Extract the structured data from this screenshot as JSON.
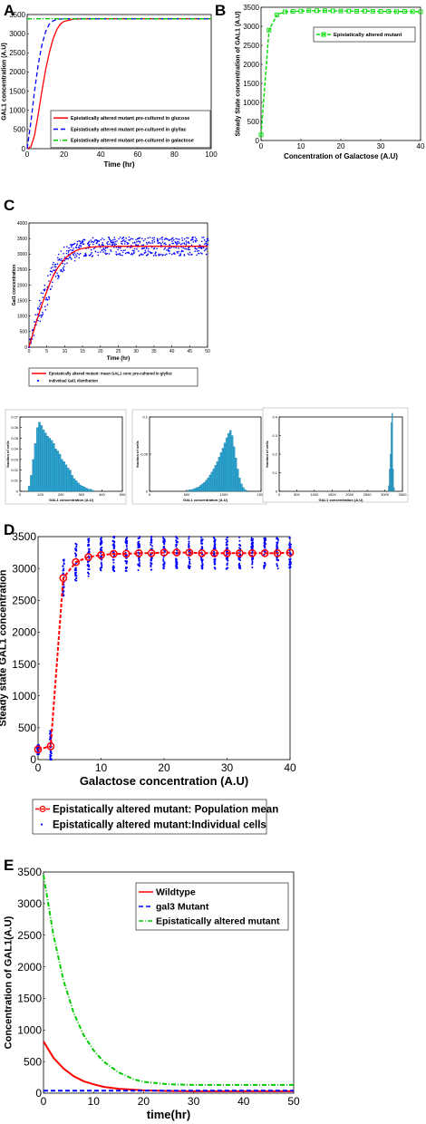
{
  "chart_data": [
    {
      "panel": "A",
      "type": "line",
      "xlabel": "Time (hr)",
      "ylabel": "GAL1 concentration (A.U)",
      "xlim": [
        0,
        100
      ],
      "ylim": [
        0,
        3500
      ],
      "xticks": [
        0,
        20,
        40,
        60,
        80,
        100
      ],
      "yticks": [
        0,
        500,
        1000,
        1500,
        2000,
        2500,
        3000,
        3500
      ],
      "legend_position": "lower-right",
      "series": [
        {
          "name": "Epistatically altered mutant pre-cultured in glucose",
          "color": "#ff0000",
          "style": "solid",
          "x": [
            0,
            2,
            4,
            6,
            8,
            10,
            12,
            14,
            16,
            18,
            20,
            25,
            30,
            40,
            100
          ],
          "y": [
            0,
            50,
            350,
            900,
            1500,
            2050,
            2500,
            2850,
            3100,
            3250,
            3320,
            3380,
            3390,
            3390,
            3390
          ]
        },
        {
          "name": "Epistatically altered mutant pre-cultured in gly/lac",
          "color": "#0000ff",
          "style": "dashed",
          "x": [
            0,
            2,
            4,
            6,
            8,
            10,
            12,
            14,
            16,
            20,
            25,
            100
          ],
          "y": [
            0,
            700,
            1500,
            2200,
            2700,
            3050,
            3250,
            3330,
            3370,
            3390,
            3390,
            3390
          ]
        },
        {
          "name": "Epistatically altered mutant pre-cultured in galactose",
          "color": "#00cc00",
          "style": "dashdot",
          "x": [
            0,
            100
          ],
          "y": [
            3390,
            3390
          ]
        }
      ]
    },
    {
      "panel": "B",
      "type": "line",
      "xlabel": "Concentration of Galactose (A.U)",
      "ylabel": "Steady State concentration of GAL1 (A.U)",
      "xlim": [
        0,
        40
      ],
      "ylim": [
        0,
        3500
      ],
      "xticks": [
        0,
        10,
        20,
        30,
        40
      ],
      "yticks": [
        0,
        500,
        1000,
        1500,
        2000,
        2500,
        3000,
        3500
      ],
      "legend_position": "top-right",
      "series": [
        {
          "name": "Epistatically altered mutant",
          "color": "#00dd00",
          "style": "dashed-square",
          "x": [
            0,
            2,
            4,
            6,
            8,
            10,
            12,
            14,
            16,
            18,
            20,
            22,
            24,
            26,
            28,
            30,
            32,
            34,
            36,
            38,
            40
          ],
          "y": [
            150,
            2900,
            3300,
            3380,
            3390,
            3400,
            3410,
            3410,
            3410,
            3405,
            3400,
            3400,
            3395,
            3400,
            3395,
            3390,
            3390,
            3385,
            3390,
            3385,
            3380
          ]
        }
      ]
    },
    {
      "panel": "C",
      "type": "scatter",
      "xlabel": "Time (hr)",
      "ylabel": "Gal1 concentration",
      "xlim": [
        0,
        50
      ],
      "ylim": [
        0,
        4000
      ],
      "xticks": [
        0,
        5,
        10,
        15,
        20,
        25,
        30,
        35,
        40,
        45,
        50
      ],
      "yticks": [
        0,
        500,
        1000,
        1500,
        2000,
        2500,
        3000,
        3500,
        4000
      ],
      "legend_position": "below",
      "series": [
        {
          "name": "Epistatically altered mutant: mean GAL1 conc pre-cultured in gly/lac",
          "color": "#ff0000",
          "style": "solid",
          "x": [
            0,
            1,
            2,
            3,
            4,
            5,
            6,
            7,
            8,
            9,
            10,
            11,
            12,
            13,
            14,
            15,
            17,
            20,
            25,
            30,
            35,
            40,
            45,
            50
          ],
          "y": [
            0,
            400,
            800,
            1150,
            1500,
            1800,
            2100,
            2350,
            2550,
            2700,
            2850,
            2950,
            3030,
            3100,
            3150,
            3180,
            3220,
            3240,
            3250,
            3250,
            3250,
            3250,
            3250,
            3250
          ]
        },
        {
          "name": "individual Gal1 distribution",
          "color": "#0000ff",
          "style": "dots",
          "spread": [
            0,
            200,
            300,
            400,
            450,
            450,
            450,
            450,
            400,
            400,
            380,
            350,
            330,
            320,
            300,
            300,
            300,
            300,
            300,
            300,
            300,
            300,
            300,
            300
          ]
        }
      ]
    },
    {
      "panel": "C-hist-1",
      "type": "bar",
      "xlabel": "GAL1 concentration (A.U)",
      "ylabel": "fraction of cells",
      "xlim": [
        0,
        500
      ],
      "ylim": [
        0,
        0.07
      ],
      "xticks": [
        0,
        100,
        200,
        300,
        400,
        500
      ],
      "yticks": [
        0,
        0.01,
        0.02,
        0.03,
        0.04,
        0.05,
        0.06,
        0.07
      ],
      "ytick_labels": [
        "0",
        "0.01",
        "0.02",
        "0.03",
        "0.04",
        "0.05",
        "0.06",
        "0.07"
      ],
      "bin_start": 40,
      "bin_width": 10,
      "values": [
        0.005,
        0.015,
        0.03,
        0.045,
        0.06,
        0.065,
        0.062,
        0.058,
        0.055,
        0.052,
        0.05,
        0.048,
        0.045,
        0.04,
        0.038,
        0.035,
        0.03,
        0.028,
        0.025,
        0.022,
        0.02,
        0.015,
        0.012,
        0.01,
        0.008,
        0.006,
        0.005,
        0.004,
        0.003,
        0.002,
        0.002,
        0.001
      ]
    },
    {
      "panel": "C-hist-2",
      "type": "bar",
      "xlabel": "GAL1 concentration (A.U)",
      "ylabel": "fraction of cells",
      "xlim": [
        0,
        1500
      ],
      "ylim": [
        0,
        0.1
      ],
      "xticks": [
        0,
        500,
        1000,
        1500
      ],
      "yticks": [
        0,
        0.05,
        0.1
      ],
      "ytick_labels": [
        "0",
        "0.05",
        "0.1"
      ],
      "bin_start": 500,
      "bin_width": 25,
      "values": [
        0.001,
        0.002,
        0.002,
        0.003,
        0.004,
        0.005,
        0.006,
        0.008,
        0.01,
        0.012,
        0.015,
        0.018,
        0.022,
        0.026,
        0.03,
        0.035,
        0.04,
        0.046,
        0.052,
        0.058,
        0.065,
        0.072,
        0.078,
        0.082,
        0.075,
        0.06,
        0.045,
        0.03,
        0.018,
        0.01,
        0.005,
        0.002,
        0.001
      ]
    },
    {
      "panel": "C-hist-3",
      "type": "bar",
      "xlabel": "GAL1 concentration (A.U)",
      "ylabel": "fraction of cells",
      "xlim": [
        0,
        3500
      ],
      "ylim": [
        0,
        0.4
      ],
      "xticks": [
        0,
        500,
        1000,
        1500,
        2000,
        2500,
        3000,
        3500
      ],
      "yticks": [
        0,
        0.1,
        0.2,
        0.3,
        0.4
      ],
      "ytick_labels": [
        "0",
        "0.1",
        "0.2",
        "0.3",
        "0.4"
      ],
      "bin_start": 3100,
      "bin_width": 25,
      "values": [
        0.03,
        0.12,
        0.2,
        0.37,
        0.42,
        0.12,
        0.02
      ]
    },
    {
      "panel": "D",
      "type": "scatter",
      "xlabel": "Galactose concentration (A.U)",
      "ylabel": "Steady state GAL1 concentration",
      "xlim": [
        0,
        40
      ],
      "ylim": [
        0,
        3500
      ],
      "xticks": [
        0,
        10,
        20,
        30,
        40
      ],
      "yticks": [
        0,
        500,
        1000,
        1500,
        2000,
        2500,
        3000,
        3500
      ],
      "legend_position": "below",
      "series": [
        {
          "name": "Epistatically altered mutant: Population mean",
          "color": "#ff0000",
          "style": "dashed-circle",
          "x": [
            0,
            2,
            4,
            6,
            8,
            10,
            12,
            14,
            16,
            18,
            20,
            22,
            24,
            26,
            28,
            30,
            32,
            34,
            36,
            38,
            40
          ],
          "y": [
            160,
            210,
            2850,
            3100,
            3180,
            3210,
            3230,
            3230,
            3240,
            3240,
            3250,
            3250,
            3250,
            3240,
            3240,
            3240,
            3240,
            3240,
            3240,
            3240,
            3250
          ]
        },
        {
          "name": "Epistatically altered mutant:Individual cells",
          "color": "#0000ff",
          "style": "dots",
          "spread": [
            80,
            250,
            300,
            300,
            300,
            280,
            280,
            270,
            270,
            270,
            260,
            260,
            260,
            250,
            250,
            250,
            250,
            250,
            250,
            250,
            250
          ]
        }
      ]
    },
    {
      "panel": "E",
      "type": "line",
      "xlabel": "time(hr)",
      "ylabel": "Concentration of GAL1(A.U)",
      "xlim": [
        0,
        50
      ],
      "ylim": [
        0,
        3500
      ],
      "xticks": [
        0,
        10,
        20,
        30,
        40,
        50
      ],
      "yticks": [
        0,
        500,
        1000,
        1500,
        2000,
        2500,
        3000,
        3500
      ],
      "legend_position": "top-right",
      "series": [
        {
          "name": "Wildtype",
          "color": "#ff0000",
          "style": "solid",
          "x": [
            0,
            2,
            4,
            6,
            8,
            10,
            12,
            15,
            20,
            25,
            30,
            40,
            50
          ],
          "y": [
            820,
            560,
            390,
            270,
            190,
            140,
            100,
            70,
            45,
            35,
            30,
            30,
            30
          ]
        },
        {
          "name": "gal3 Mutant",
          "color": "#0000ff",
          "style": "dashed",
          "x": [
            0,
            50
          ],
          "y": [
            40,
            40
          ]
        },
        {
          "name": "Epistatically altered mutant",
          "color": "#00cc00",
          "style": "dashdot",
          "x": [
            0,
            2,
            4,
            6,
            8,
            10,
            12,
            15,
            18,
            20,
            25,
            30,
            40,
            50
          ],
          "y": [
            3450,
            2500,
            1780,
            1280,
            920,
            680,
            500,
            330,
            220,
            180,
            140,
            130,
            130,
            130
          ]
        }
      ]
    }
  ]
}
